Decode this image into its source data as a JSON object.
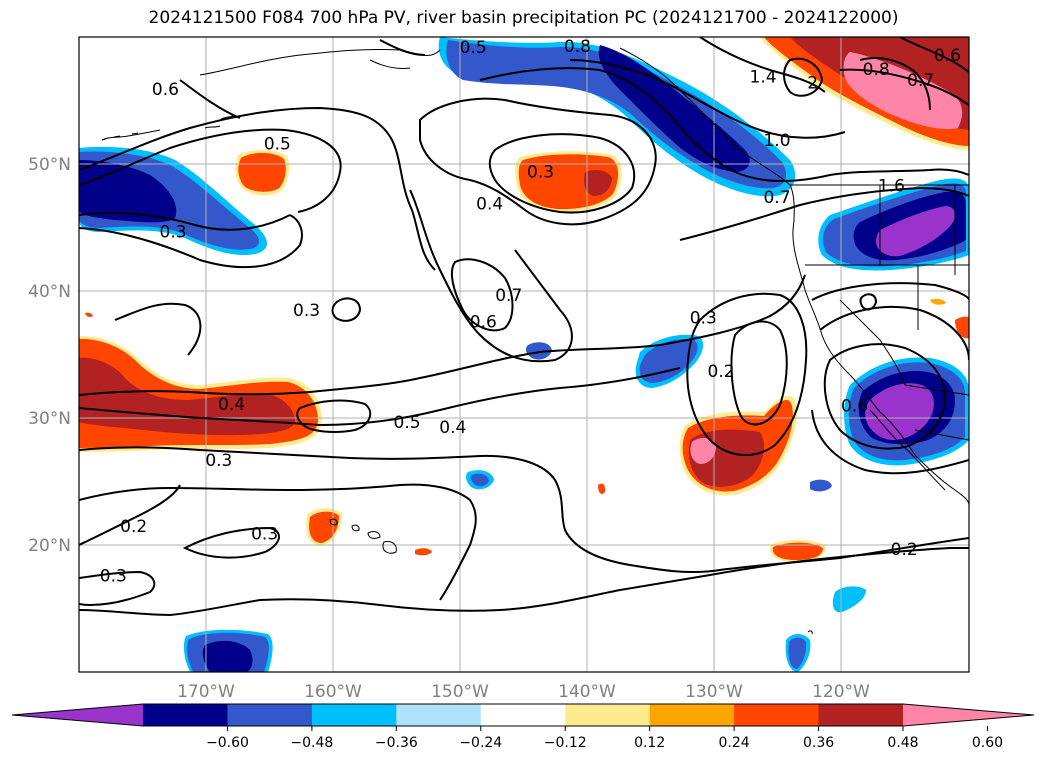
{
  "title": "2024121500 F084 700 hPa PV, river basin precipitation PC (2024121700 - 2024122000)",
  "map": {
    "projection": "lat-lon",
    "lon_range": [
      -180,
      -110
    ],
    "lat_range": [
      10,
      60
    ],
    "gridlines": true,
    "lon_labels": [
      "170°W",
      "160°W",
      "150°W",
      "140°W",
      "130°W",
      "120°W"
    ],
    "lat_labels": [
      "50°N",
      "40°N",
      "30°N",
      "20°N"
    ],
    "contour_color": "#000000"
  },
  "colorbar": {
    "orientation": "horizontal",
    "extend": "both",
    "colors": [
      "#9933cc",
      "#00008b",
      "#3358cc",
      "#00bfff",
      "#afe3fb",
      "#ffffff",
      "#ffeb8f",
      "#ffa500",
      "#ff4500",
      "#b22222",
      "#ff85a8"
    ],
    "tick_labels": [
      "−0.60",
      "−0.48",
      "−0.36",
      "−0.24",
      "−0.12",
      "0.12",
      "0.24",
      "0.36",
      "0.48",
      "0.60"
    ]
  },
  "contour_labels": [
    {
      "text": "0.5",
      "lon": -149,
      "lat": 59.2
    },
    {
      "text": "0.8",
      "lon": -140.8,
      "lat": 59.3
    },
    {
      "text": "1.4",
      "lon": -126.2,
      "lat": 56.9
    },
    {
      "text": "2",
      "lon": -122.3,
      "lat": 56.4
    },
    {
      "text": "0.8",
      "lon": -117.3,
      "lat": 57.5
    },
    {
      "text": "0.7",
      "lon": -113.8,
      "lat": 56.6
    },
    {
      "text": "0.6",
      "lon": -111.7,
      "lat": 58.6
    },
    {
      "text": "0.6",
      "lon": -173.2,
      "lat": 55.9
    },
    {
      "text": "0.5",
      "lon": -164.4,
      "lat": 51.6
    },
    {
      "text": "0.3",
      "lon": -143.7,
      "lat": 49.4
    },
    {
      "text": "0.4",
      "lon": -147.7,
      "lat": 46.9
    },
    {
      "text": "1.0",
      "lon": -125.1,
      "lat": 51.9
    },
    {
      "text": "0.7",
      "lon": -125.1,
      "lat": 47.4
    },
    {
      "text": "1.6",
      "lon": -116.1,
      "lat": 48.3
    },
    {
      "text": "0.3",
      "lon": -172.6,
      "lat": 44.7
    },
    {
      "text": "0.7",
      "lon": -146.2,
      "lat": 39.7
    },
    {
      "text": "0.6",
      "lon": -148.2,
      "lat": 37.6
    },
    {
      "text": "0.3",
      "lon": -162.1,
      "lat": 38.5
    },
    {
      "text": "0.3",
      "lon": -130.9,
      "lat": 37.9
    },
    {
      "text": "0.2",
      "lon": -129.5,
      "lat": 33.7
    },
    {
      "text": "0.4",
      "lon": -168.0,
      "lat": 31.1
    },
    {
      "text": "0.5",
      "lon": -154.2,
      "lat": 29.7
    },
    {
      "text": "0.4",
      "lon": -150.6,
      "lat": 29.3
    },
    {
      "text": "0.3",
      "lon": -169.0,
      "lat": 26.7
    },
    {
      "text": "0.2",
      "lon": -175.7,
      "lat": 21.5
    },
    {
      "text": "0.3",
      "lon": -165.4,
      "lat": 20.9
    },
    {
      "text": "0.3",
      "lon": -177.3,
      "lat": 17.6
    },
    {
      "text": "0.2",
      "lon": -115.1,
      "lat": 19.7
    },
    {
      "text": "0.6",
      "lon": -119.0,
      "lat": 31.0
    }
  ]
}
